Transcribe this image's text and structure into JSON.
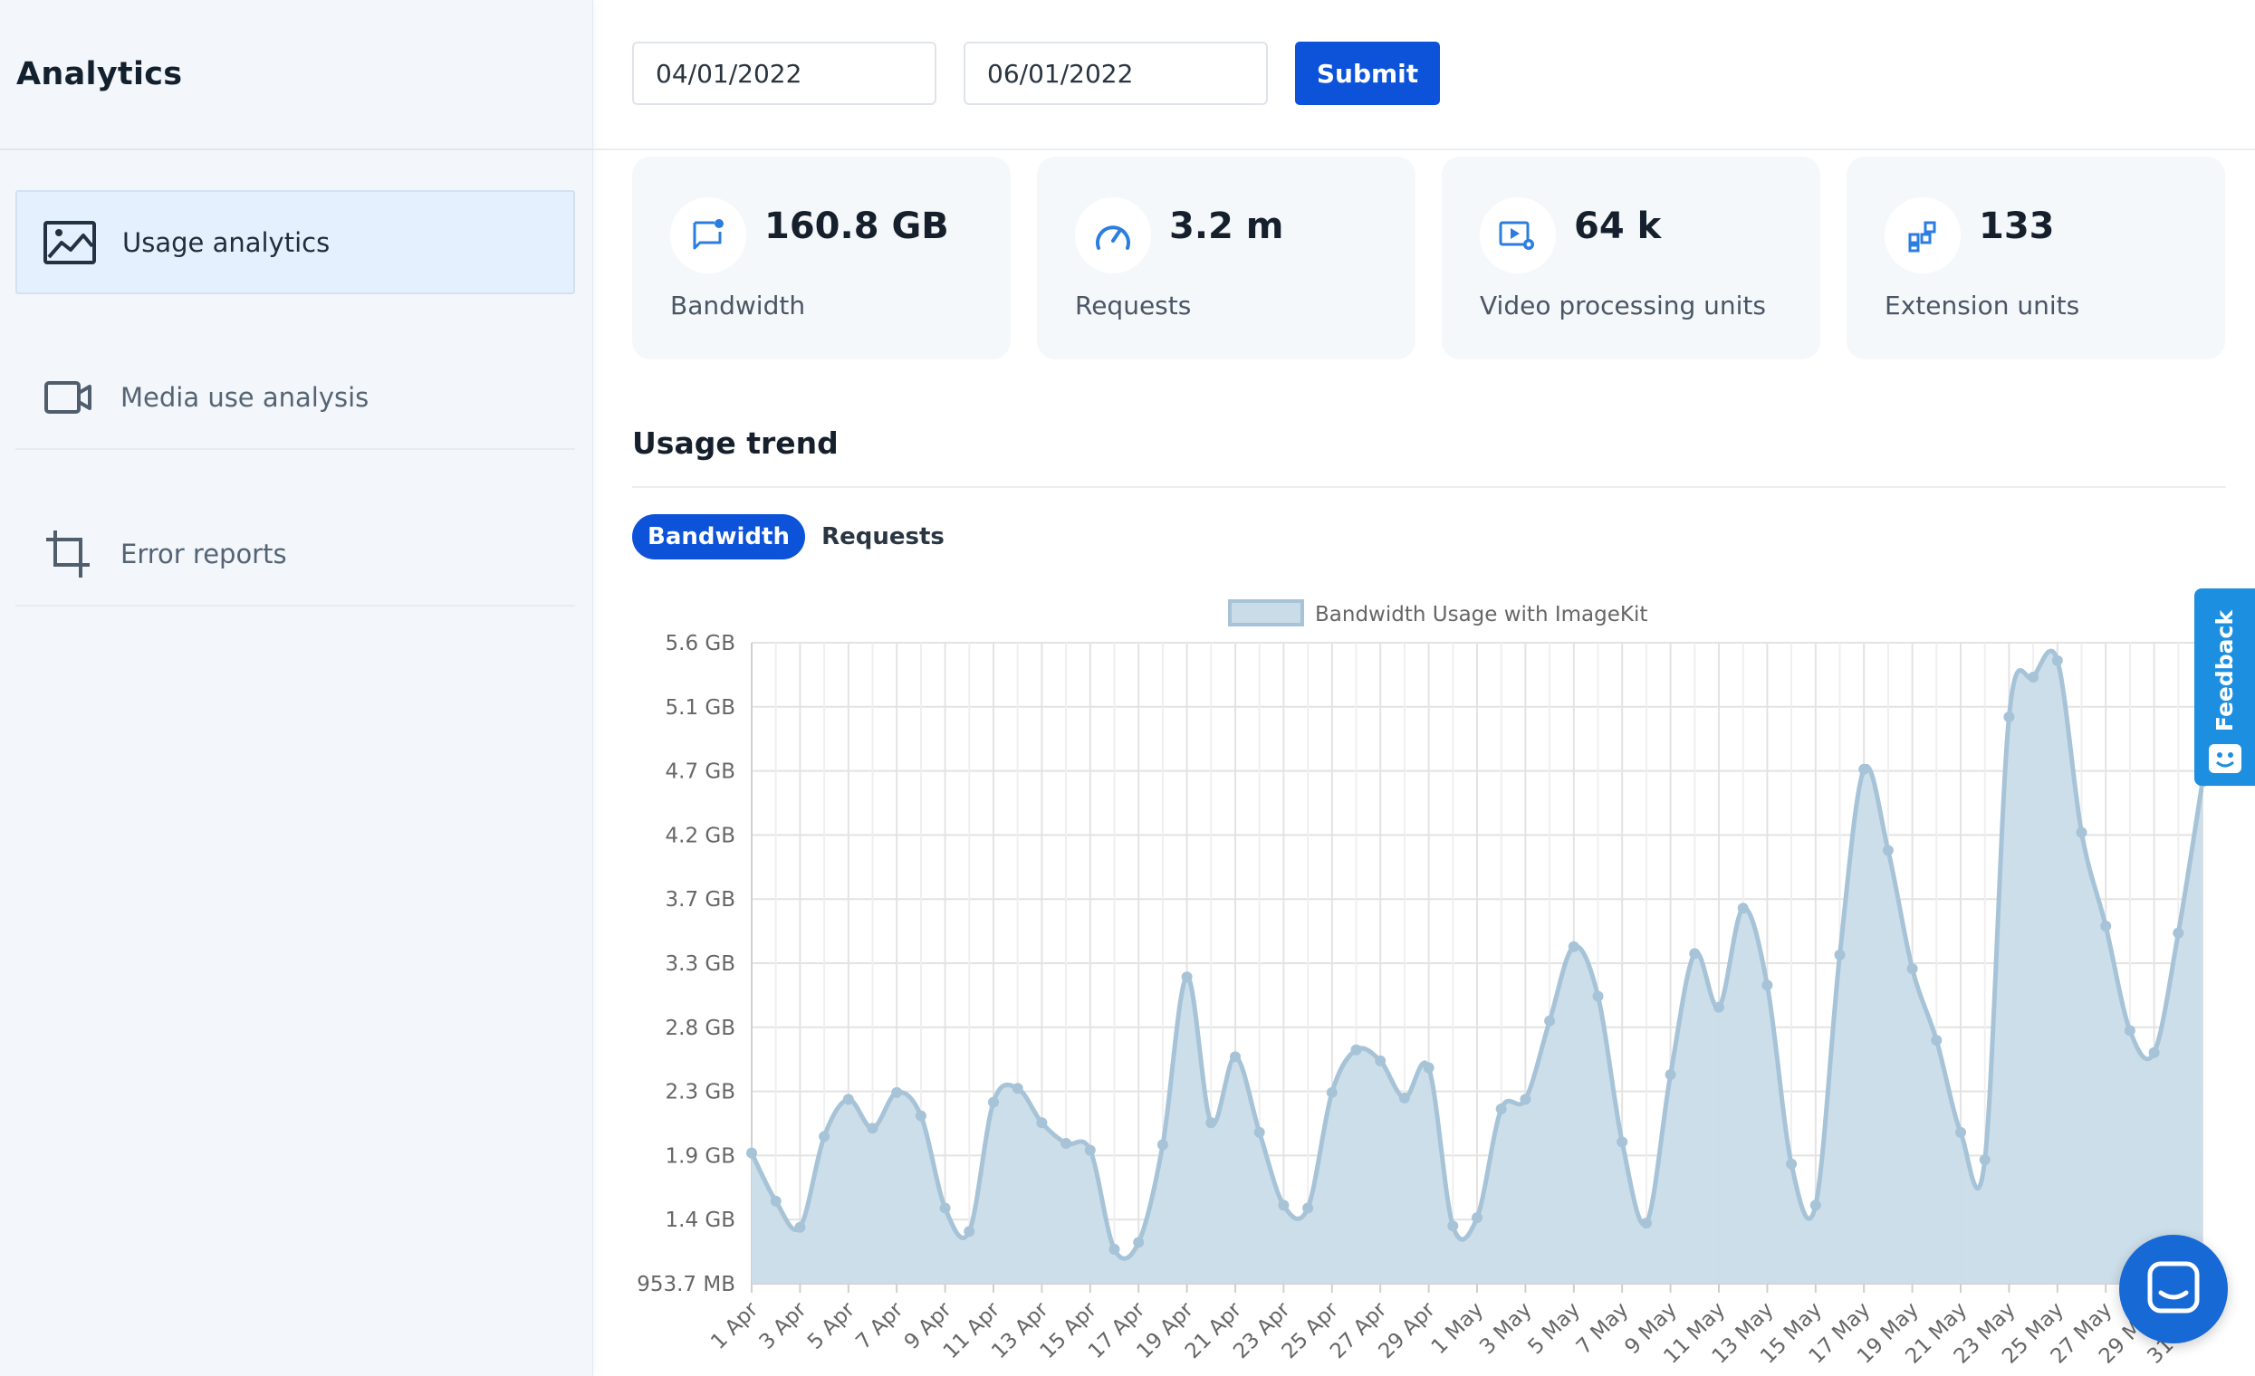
{
  "sidebar": {
    "title": "Analytics",
    "items": [
      {
        "label": "Usage analytics",
        "icon": "image-icon",
        "active": true
      },
      {
        "label": "Media use analysis",
        "icon": "video-camera-icon",
        "active": false
      },
      {
        "label": "Error reports",
        "icon": "crop-icon",
        "active": false
      }
    ]
  },
  "filters": {
    "start_date": "04/01/2022",
    "end_date": "06/01/2022",
    "submit_label": "Submit"
  },
  "stats": [
    {
      "value": "160.8 GB",
      "label": "Bandwidth",
      "icon": "bandwidth-icon"
    },
    {
      "value": "3.2 m",
      "label": "Requests",
      "icon": "gauge-icon"
    },
    {
      "value": "64 k",
      "label": "Video processing units",
      "icon": "video-settings-icon"
    },
    {
      "value": "133",
      "label": "Extension units",
      "icon": "extension-icon"
    }
  ],
  "trend": {
    "title": "Usage trend",
    "tabs": [
      {
        "label": "Bandwidth",
        "active": true
      },
      {
        "label": "Requests",
        "active": false
      }
    ]
  },
  "feedback_label": "Feedback",
  "colors": {
    "accent": "#0c53da",
    "area_fill": "#c9dce8",
    "area_line": "#a6c3d8",
    "feedback": "#1d8fe0",
    "chat": "#1769d6"
  },
  "chart_data": {
    "type": "area",
    "legend": "Bandwidth Usage with ImageKit",
    "y_ticks": [
      "5.6 GB",
      "5.1 GB",
      "4.7 GB",
      "4.2 GB",
      "3.7 GB",
      "3.3 GB",
      "2.8 GB",
      "2.3 GB",
      "1.9 GB",
      "1.4 GB",
      "953.7 MB"
    ],
    "ylim_gb": [
      0.93,
      5.59
    ],
    "x_labels": [
      "1 Apr",
      "3 Apr",
      "5 Apr",
      "7 Apr",
      "9 Apr",
      "11 Apr",
      "13 Apr",
      "15 Apr",
      "17 Apr",
      "19 Apr",
      "21 Apr",
      "23 Apr",
      "25 Apr",
      "27 Apr",
      "29 Apr",
      "1 May",
      "3 May",
      "5 May",
      "7 May",
      "9 May",
      "11 May",
      "13 May",
      "15 May",
      "17 May",
      "19 May",
      "21 May",
      "23 May",
      "25 May",
      "27 May",
      "29 May",
      "31 May"
    ],
    "grid": true,
    "legend_position": "top",
    "values_gb": [
      1.88,
      1.53,
      1.34,
      2.0,
      2.27,
      2.06,
      2.32,
      2.15,
      1.48,
      1.31,
      2.25,
      2.35,
      2.1,
      1.95,
      1.9,
      1.18,
      1.23,
      1.94,
      3.16,
      2.1,
      2.58,
      2.03,
      1.5,
      1.48,
      2.32,
      2.63,
      2.55,
      2.28,
      2.5,
      1.35,
      1.41,
      2.2,
      2.27,
      2.84,
      3.38,
      3.02,
      1.96,
      1.37,
      2.45,
      3.33,
      2.94,
      3.66,
      3.1,
      1.8,
      1.5,
      3.32,
      4.67,
      4.08,
      3.22,
      2.7,
      2.03,
      1.83,
      5.05,
      5.34,
      5.46,
      4.21,
      3.53,
      2.77,
      2.61,
      3.48,
      4.58
    ]
  }
}
